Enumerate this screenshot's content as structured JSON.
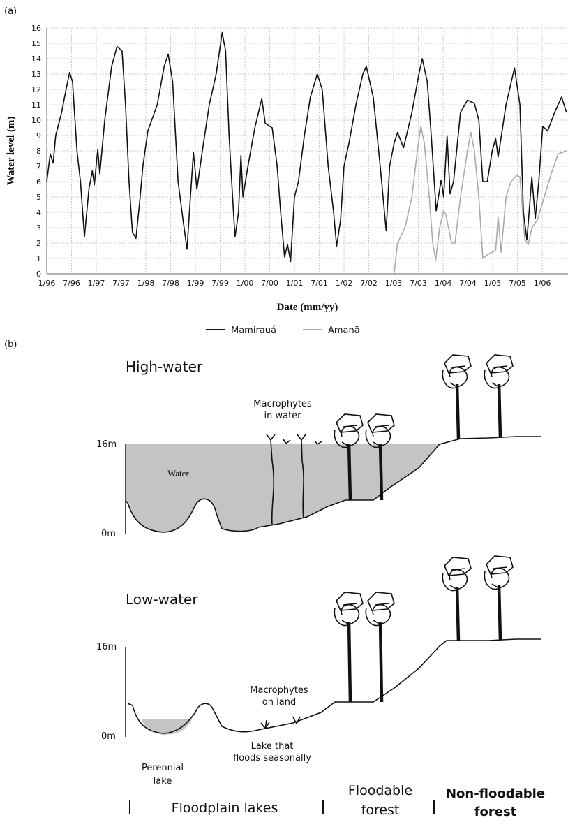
{
  "chart_data": {
    "type": "line",
    "panel_label": "(a)",
    "x_label": "Date (mm/yy)",
    "y_label": "Water level (m)",
    "xlim": [
      1996,
      2006.52
    ],
    "ylim": [
      0,
      16
    ],
    "xticks": [
      {
        "value": 1996,
        "label": "1/96"
      },
      {
        "value": 1996.5,
        "label": "7/96"
      },
      {
        "value": 1997,
        "label": "1/97"
      },
      {
        "value": 1997.5,
        "label": "7/97"
      },
      {
        "value": 1998,
        "label": "1/98"
      },
      {
        "value": 1998.5,
        "label": "7/98"
      },
      {
        "value": 1999,
        "label": "1/99"
      },
      {
        "value": 1999.5,
        "label": "7/99"
      },
      {
        "value": 2000,
        "label": "1/00"
      },
      {
        "value": 2000.5,
        "label": "7/00"
      },
      {
        "value": 2001,
        "label": "1/01"
      },
      {
        "value": 2001.5,
        "label": "7/01"
      },
      {
        "value": 2002,
        "label": "1/02"
      },
      {
        "value": 2002.5,
        "label": "7/02"
      },
      {
        "value": 2003,
        "label": "1/03"
      },
      {
        "value": 2003.5,
        "label": "7/03"
      },
      {
        "value": 2004,
        "label": "1/04"
      },
      {
        "value": 2004.5,
        "label": "7/04"
      },
      {
        "value": 2005,
        "label": "1/05"
      },
      {
        "value": 2005.5,
        "label": "7/05"
      },
      {
        "value": 2006,
        "label": "1/06"
      }
    ],
    "yticks": [
      0,
      1,
      2,
      3,
      4,
      5,
      6,
      7,
      8,
      9,
      10,
      11,
      12,
      13,
      14,
      15,
      16
    ],
    "grid": true,
    "legend": "bottom",
    "series": [
      {
        "name": "Mamirauá",
        "color": "#111111",
        "x": [
          1996.0,
          1996.07,
          1996.13,
          1996.18,
          1996.3,
          1996.39,
          1996.46,
          1996.52,
          1996.61,
          1996.68,
          1996.76,
          1996.85,
          1996.92,
          1996.96,
          1997.03,
          1997.07,
          1997.17,
          1997.31,
          1997.42,
          1997.52,
          1997.59,
          1997.66,
          1997.73,
          1997.8,
          1997.87,
          1997.94,
          1998.04,
          1998.23,
          1998.37,
          1998.45,
          1998.54,
          1998.65,
          1998.75,
          1998.83,
          1998.9,
          1998.96,
          1999.03,
          1999.14,
          1999.28,
          1999.42,
          1999.54,
          1999.61,
          1999.68,
          1999.75,
          1999.8,
          1999.87,
          1999.92,
          1999.96,
          2000.06,
          2000.2,
          2000.34,
          2000.41,
          2000.55,
          2000.65,
          2000.72,
          2000.8,
          2000.86,
          2000.92,
          2001.0,
          2001.08,
          2001.2,
          2001.32,
          2001.46,
          2001.56,
          2001.68,
          2001.79,
          2001.85,
          2001.93,
          2002.0,
          2002.1,
          2002.24,
          2002.38,
          2002.45,
          2002.59,
          2002.73,
          2002.85,
          2002.92,
          2003.01,
          2003.08,
          2003.2,
          2003.37,
          2003.51,
          2003.58,
          2003.68,
          2003.76,
          2003.86,
          2003.96,
          2004.01,
          2004.08,
          2004.14,
          2004.21,
          2004.35,
          2004.49,
          2004.63,
          2004.72,
          2004.8,
          2004.89,
          2004.99,
          2005.06,
          2005.11,
          2005.27,
          2005.44,
          2005.55,
          2005.62,
          2005.69,
          2005.79,
          2005.86,
          2005.93,
          2006.01,
          2006.11,
          2006.25,
          2006.39,
          2006.49
        ],
        "values": [
          6,
          7.8,
          7.2,
          9,
          10.5,
          12,
          13.1,
          12.5,
          8,
          6,
          2.4,
          5.5,
          6.7,
          5.8,
          8.1,
          6.5,
          10,
          13.5,
          14.8,
          14.5,
          11,
          6,
          2.7,
          2.3,
          4.5,
          7,
          9.3,
          11,
          13.5,
          14.3,
          12.5,
          6,
          3.5,
          1.6,
          5,
          7.9,
          5.5,
          8,
          11,
          13,
          15.7,
          14.5,
          9,
          5,
          2.4,
          4,
          7.7,
          5,
          7,
          9.5,
          11.4,
          9.8,
          9.5,
          7,
          4,
          1.1,
          1.9,
          0.8,
          5,
          6,
          9,
          11.5,
          13,
          12,
          7,
          4,
          1.8,
          3.5,
          7,
          8.5,
          11,
          13,
          13.5,
          11.5,
          7,
          2.8,
          7,
          8.5,
          9.2,
          8.2,
          10.5,
          13,
          14,
          12.5,
          9,
          4.1,
          6.1,
          5,
          9,
          5.2,
          6,
          10.5,
          11.3,
          11.1,
          10,
          6,
          6,
          8,
          8.8,
          7.6,
          11,
          13.4,
          11,
          4,
          2.2,
          6.3,
          3.6,
          6,
          9.6,
          9.3,
          10.5,
          11.5,
          10.5
        ]
      },
      {
        "name": "Amanã",
        "color": "#aaaaaa",
        "x": [
          2003.01,
          2003.08,
          2003.23,
          2003.37,
          2003.48,
          2003.55,
          2003.62,
          2003.72,
          2003.79,
          2003.85,
          2003.93,
          2004.01,
          2004.06,
          2004.17,
          2004.24,
          2004.35,
          2004.49,
          2004.56,
          2004.63,
          2004.72,
          2004.8,
          2004.92,
          2005.06,
          2005.11,
          2005.17,
          2005.27,
          2005.37,
          2005.48,
          2005.55,
          2005.65,
          2005.72,
          2005.79,
          2005.9,
          2006.04,
          2006.18,
          2006.32,
          2006.49
        ],
        "values": [
          0,
          2,
          3,
          5,
          8,
          9.6,
          8.5,
          5,
          2,
          0.9,
          3,
          4.1,
          3.8,
          2,
          2,
          5,
          8,
          9.2,
          8,
          5,
          1,
          1.3,
          1.5,
          3.7,
          1.4,
          5,
          6,
          6.4,
          6.3,
          2.2,
          1.9,
          3,
          3.5,
          5,
          6.5,
          7.8,
          8
        ]
      }
    ]
  },
  "diagram": {
    "panel_label": "(b)",
    "high_title": "High-water",
    "low_title": "Low-water",
    "scale_top": "16m",
    "scale_bottom": "0m",
    "water": "Water",
    "macrophytes_water": [
      "Macrophytes",
      "in water"
    ],
    "macrophytes_land": [
      "Macrophytes",
      "on land"
    ],
    "lake_seasonal": [
      "Lake that",
      "floods seasonally"
    ],
    "perennial_lake": [
      "Perennial",
      "lake"
    ],
    "zones": [
      [
        "Floodplain lakes"
      ],
      [
        "Floodable",
        "forest"
      ],
      [
        "Non-floodable",
        "forest"
      ]
    ]
  }
}
